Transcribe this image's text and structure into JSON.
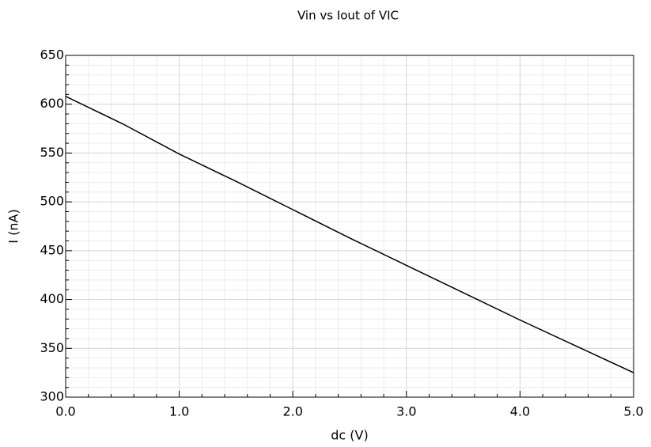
{
  "chart_data": {
    "type": "line",
    "title": "Vin vs Iout of VIC",
    "x_label": "dc (V)",
    "y_label": "I (nA)",
    "x": [
      0.0,
      0.5,
      1.0,
      1.5,
      2.0,
      2.5,
      3.0,
      3.5,
      4.0,
      4.5,
      5.0
    ],
    "series": [
      {
        "color": "#000000",
        "values": [
          608,
          580,
          549,
          521,
          492,
          463,
          435,
          407,
          379,
          352,
          325
        ]
      }
    ],
    "xlim": [
      0,
      5
    ],
    "ylim": [
      300,
      650
    ],
    "xticks": [
      {
        "value": 0,
        "label": "0.0"
      },
      {
        "value": 1,
        "label": "1.0"
      },
      {
        "value": 2,
        "label": "2.0"
      },
      {
        "value": 3,
        "label": "3.0"
      },
      {
        "value": 4,
        "label": "4.0"
      },
      {
        "value": 5,
        "label": "5.0"
      }
    ],
    "yticks": [
      300,
      350,
      400,
      450,
      500,
      550,
      600,
      650
    ],
    "grid": true,
    "minor_grid": true
  }
}
